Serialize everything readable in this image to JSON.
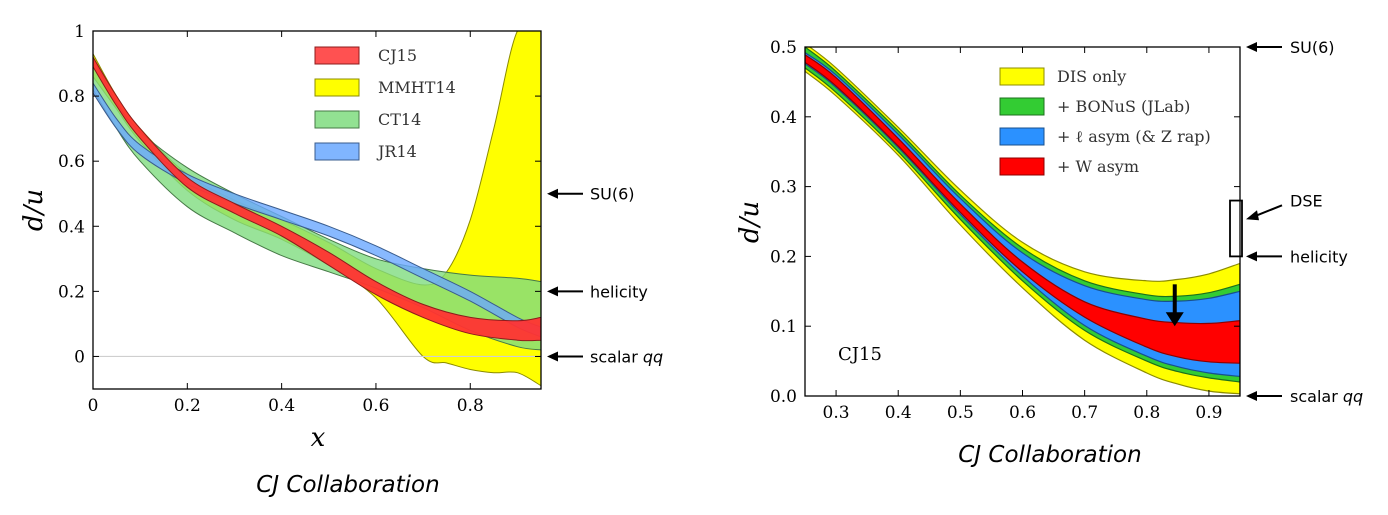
{
  "chart_data": [
    {
      "type": "area",
      "xlabel": "x",
      "ylabel": "d/u",
      "xlim": [
        0,
        0.95
      ],
      "ylim": [
        -0.1,
        1.0
      ],
      "xticks": [
        "0",
        "0.2",
        "0.4",
        "0.6",
        "0.8"
      ],
      "xtick_values": [
        0,
        0.2,
        0.4,
        0.6,
        0.8
      ],
      "yticks": [
        "0",
        "0.2",
        "0.4",
        "0.6",
        "0.8",
        "1"
      ],
      "ytick_values": [
        0,
        0.2,
        0.4,
        0.6,
        0.8,
        1.0
      ],
      "legend_position": "top-right",
      "caption": "CJ Collaboration",
      "reference_line": 0,
      "annotations": [
        {
          "label": "SU(6)",
          "y": 0.5
        },
        {
          "label": "helicity",
          "y": 0.2
        },
        {
          "label": "scalar qq",
          "y": 0.0
        }
      ],
      "series": [
        {
          "name": "MMHT14",
          "color": "#ffff00",
          "x": [
            0.0,
            0.05,
            0.1,
            0.2,
            0.3,
            0.4,
            0.5,
            0.6,
            0.7,
            0.75,
            0.8,
            0.85,
            0.9,
            0.95
          ],
          "upper": [
            0.93,
            0.8,
            0.7,
            0.56,
            0.48,
            0.42,
            0.35,
            0.27,
            0.22,
            0.26,
            0.42,
            0.7,
            1.0,
            1.0
          ],
          "lower": [
            0.86,
            0.76,
            0.66,
            0.51,
            0.42,
            0.36,
            0.28,
            0.18,
            0.0,
            -0.02,
            -0.04,
            -0.05,
            -0.05,
            -0.09
          ]
        },
        {
          "name": "CT14",
          "color": "#7fdc7f",
          "x": [
            0.0,
            0.05,
            0.1,
            0.2,
            0.3,
            0.4,
            0.5,
            0.6,
            0.7,
            0.8,
            0.9,
            0.95
          ],
          "upper": [
            0.92,
            0.78,
            0.69,
            0.58,
            0.5,
            0.43,
            0.36,
            0.3,
            0.27,
            0.25,
            0.24,
            0.23
          ],
          "lower": [
            0.82,
            0.7,
            0.6,
            0.46,
            0.38,
            0.31,
            0.26,
            0.21,
            0.15,
            0.08,
            0.03,
            0.02
          ]
        },
        {
          "name": "JR14",
          "color": "#6aa8ff",
          "x": [
            0.0,
            0.05,
            0.1,
            0.2,
            0.3,
            0.4,
            0.5,
            0.6,
            0.7,
            0.8,
            0.9,
            0.95
          ],
          "upper": [
            0.84,
            0.73,
            0.65,
            0.56,
            0.5,
            0.45,
            0.4,
            0.34,
            0.27,
            0.2,
            0.12,
            0.09
          ],
          "lower": [
            0.81,
            0.7,
            0.62,
            0.53,
            0.47,
            0.42,
            0.37,
            0.31,
            0.24,
            0.17,
            0.09,
            0.06
          ]
        },
        {
          "name": "CJ15",
          "color": "#ff3333",
          "x": [
            0.0,
            0.05,
            0.1,
            0.2,
            0.3,
            0.4,
            0.5,
            0.6,
            0.7,
            0.8,
            0.9,
            0.95
          ],
          "upper": [
            0.92,
            0.8,
            0.7,
            0.55,
            0.47,
            0.4,
            0.32,
            0.23,
            0.16,
            0.12,
            0.11,
            0.12
          ],
          "lower": [
            0.89,
            0.77,
            0.67,
            0.52,
            0.44,
            0.37,
            0.28,
            0.19,
            0.12,
            0.07,
            0.05,
            0.05
          ]
        }
      ]
    },
    {
      "type": "area",
      "xlabel": "",
      "ylabel": "d/u",
      "xlim": [
        0.25,
        0.95
      ],
      "ylim": [
        0.0,
        0.5
      ],
      "xticks": [
        "0.3",
        "0.4",
        "0.5",
        "0.6",
        "0.7",
        "0.8",
        "0.9"
      ],
      "xtick_values": [
        0.3,
        0.4,
        0.5,
        0.6,
        0.7,
        0.8,
        0.9
      ],
      "yticks": [
        "0.0",
        "0.1",
        "0.2",
        "0.3",
        "0.4",
        "0.5"
      ],
      "ytick_values": [
        0.0,
        0.1,
        0.2,
        0.3,
        0.4,
        0.5
      ],
      "legend_position": "top-right",
      "inset_label": "CJ15",
      "caption": "CJ Collaboration",
      "annotations": [
        {
          "label": "SU(6)",
          "y": 0.5
        },
        {
          "label": "DSE",
          "y_range": [
            0.2,
            0.28
          ]
        },
        {
          "label": "helicity",
          "y": 0.2
        },
        {
          "label": "scalar qq",
          "y": 0.0
        }
      ],
      "arrow": {
        "x": 0.845,
        "y_from": 0.16,
        "y_to": 0.1
      },
      "series": [
        {
          "name": "DIS only",
          "color": "#ffff00",
          "x": [
            0.25,
            0.3,
            0.4,
            0.5,
            0.6,
            0.7,
            0.8,
            0.85,
            0.9,
            0.95
          ],
          "upper": [
            0.505,
            0.47,
            0.385,
            0.295,
            0.22,
            0.178,
            0.165,
            0.167,
            0.175,
            0.19
          ],
          "lower": [
            0.465,
            0.43,
            0.345,
            0.245,
            0.155,
            0.08,
            0.033,
            0.017,
            0.007,
            0.003
          ]
        },
        {
          "name": "+ BONuS (JLab)",
          "color": "#33cc33",
          "x": [
            0.25,
            0.3,
            0.4,
            0.5,
            0.6,
            0.7,
            0.8,
            0.85,
            0.9,
            0.95
          ],
          "upper": [
            0.5,
            0.465,
            0.38,
            0.288,
            0.212,
            0.165,
            0.145,
            0.143,
            0.148,
            0.16
          ],
          "lower": [
            0.47,
            0.435,
            0.35,
            0.253,
            0.165,
            0.094,
            0.05,
            0.035,
            0.026,
            0.02
          ]
        },
        {
          "name": "+ ℓ asym (& Z rap)",
          "color": "#2b91ff",
          "x": [
            0.25,
            0.3,
            0.4,
            0.5,
            0.6,
            0.7,
            0.8,
            0.85,
            0.9,
            0.95
          ],
          "upper": [
            0.492,
            0.46,
            0.375,
            0.283,
            0.205,
            0.158,
            0.138,
            0.136,
            0.14,
            0.15
          ],
          "lower": [
            0.476,
            0.442,
            0.356,
            0.26,
            0.172,
            0.101,
            0.057,
            0.042,
            0.033,
            0.028
          ]
        },
        {
          "name": "+ W asym",
          "color": "#ff0000",
          "x": [
            0.25,
            0.3,
            0.4,
            0.5,
            0.6,
            0.7,
            0.8,
            0.85,
            0.9,
            0.95
          ],
          "upper": [
            0.489,
            0.456,
            0.369,
            0.275,
            0.192,
            0.135,
            0.11,
            0.105,
            0.104,
            0.108
          ],
          "lower": [
            0.478,
            0.444,
            0.358,
            0.263,
            0.178,
            0.113,
            0.07,
            0.056,
            0.049,
            0.047
          ]
        }
      ]
    }
  ]
}
